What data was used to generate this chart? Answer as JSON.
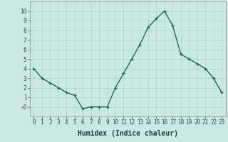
{
  "x": [
    0,
    1,
    2,
    3,
    4,
    5,
    6,
    7,
    8,
    9,
    10,
    11,
    12,
    13,
    14,
    15,
    16,
    17,
    18,
    19,
    20,
    21,
    22,
    23
  ],
  "y": [
    4.0,
    3.0,
    2.5,
    2.0,
    1.5,
    1.2,
    -0.2,
    0.0,
    0.0,
    0.0,
    2.0,
    3.5,
    5.0,
    6.5,
    8.3,
    9.2,
    10.0,
    8.5,
    5.5,
    5.0,
    4.5,
    4.0,
    3.0,
    1.5
  ],
  "line_color": "#1a6b5a",
  "marker": "+",
  "markersize": 3,
  "linewidth": 1.0,
  "xlabel": "Humidex (Indice chaleur)",
  "xlabel_fontsize": 7,
  "xlim": [
    -0.5,
    23.5
  ],
  "ylim": [
    -1,
    11
  ],
  "yticks": [
    0,
    1,
    2,
    3,
    4,
    5,
    6,
    7,
    8,
    9,
    10
  ],
  "ytick_labels": [
    "-0",
    "1",
    "2",
    "3",
    "4",
    "5",
    "6",
    "7",
    "8",
    "9",
    "10"
  ],
  "xticks": [
    0,
    1,
    2,
    3,
    4,
    5,
    6,
    7,
    8,
    9,
    10,
    11,
    12,
    13,
    14,
    15,
    16,
    17,
    18,
    19,
    20,
    21,
    22,
    23
  ],
  "background_color": "#cce8e4",
  "grid_color": "#aad4ce",
  "tick_fontsize": 5.5,
  "fig_bg_color": "#cce8e4"
}
